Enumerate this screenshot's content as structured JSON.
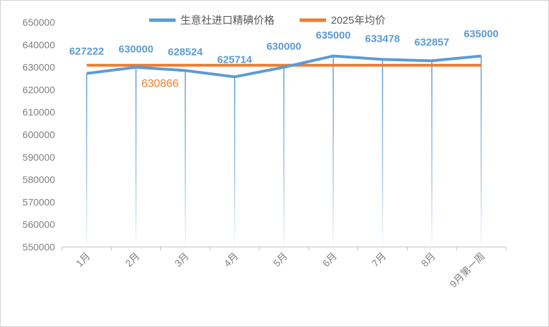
{
  "chart_data": {
    "type": "line",
    "title": "",
    "categories": [
      "1月",
      "2月",
      "3月",
      "4月",
      "5月",
      "6月",
      "7月",
      "8月",
      "9月第一周"
    ],
    "series": [
      {
        "name": "生意社进口精碘价格",
        "color": "#5b9bd5",
        "values": [
          627222,
          630000,
          628524,
          625714,
          630000,
          635000,
          633478,
          632857,
          635000
        ]
      },
      {
        "name": "2025年均价",
        "color": "#ed7d31",
        "values": [
          630866,
          630866,
          630866,
          630866,
          630866,
          630866,
          630866,
          630866,
          630866
        ]
      }
    ],
    "annotation": "630866",
    "ylim": [
      550000,
      650000
    ],
    "yticks": [
      550000,
      560000,
      570000,
      580000,
      590000,
      600000,
      610000,
      620000,
      630000,
      640000,
      650000
    ],
    "legend_position": "top",
    "grid": false,
    "drop_lines": true
  }
}
